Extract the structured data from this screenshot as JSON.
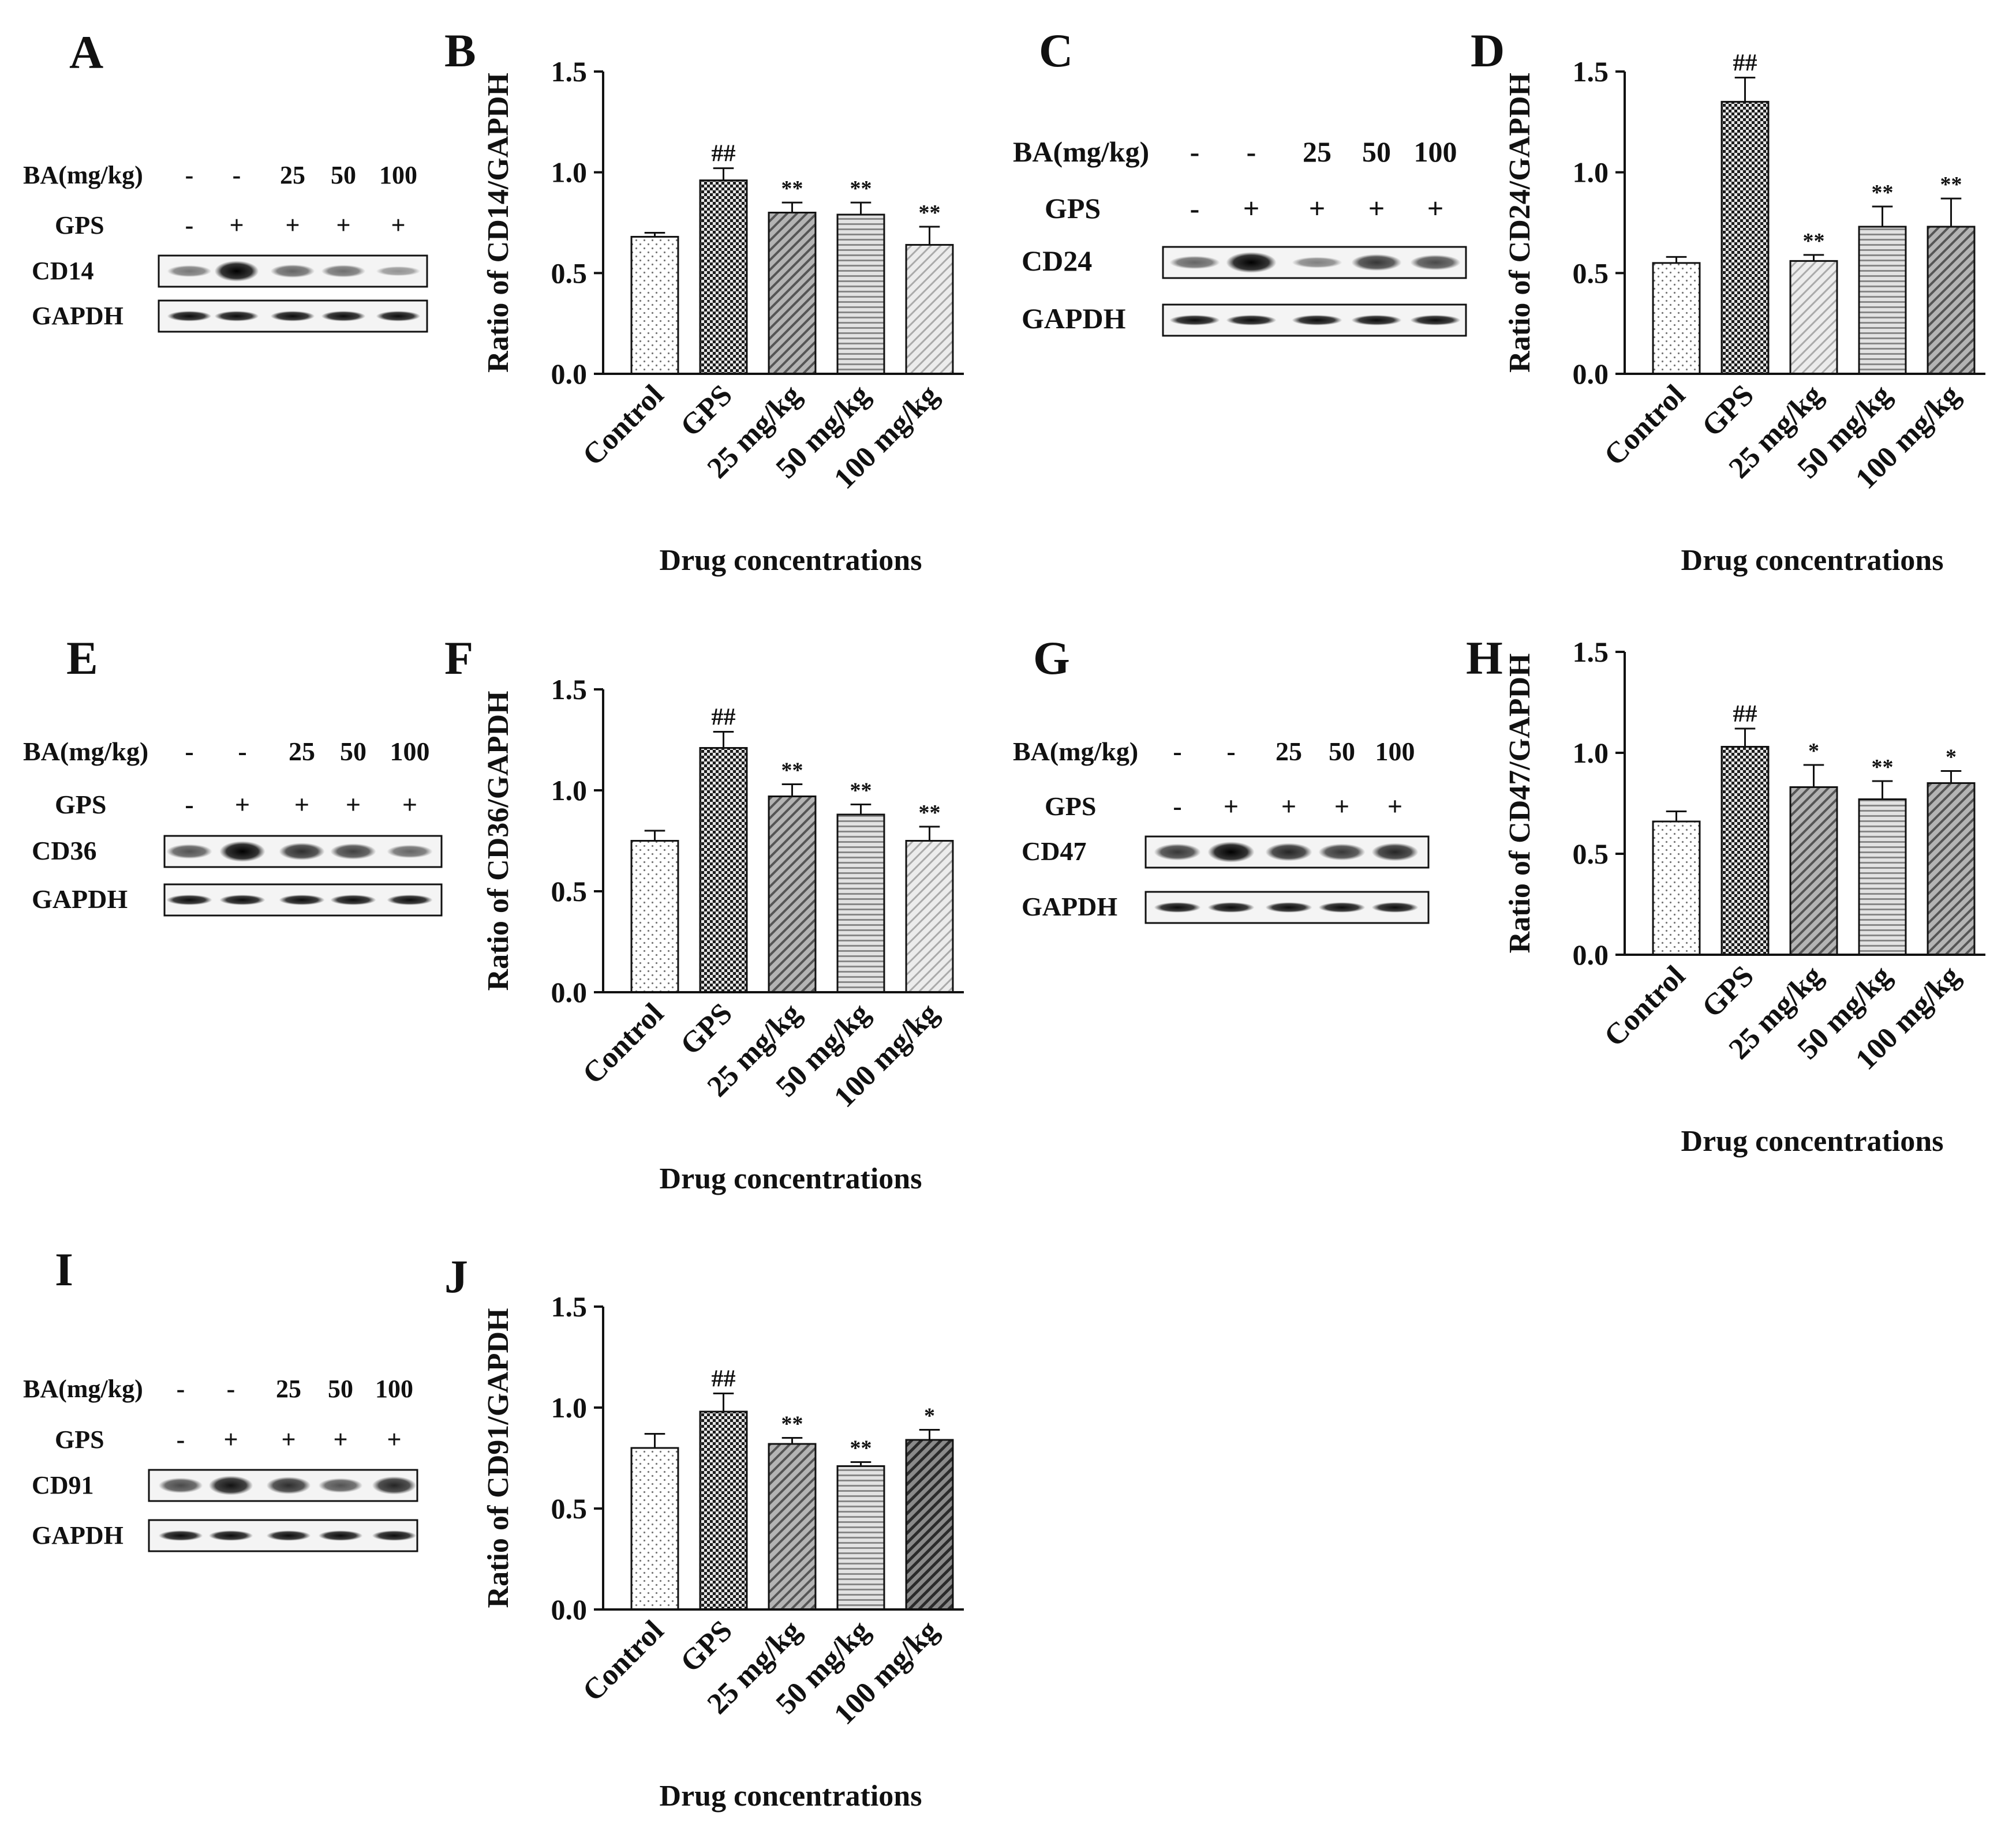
{
  "figure": {
    "panels": [
      {
        "id": "A",
        "kind": "blot",
        "ba_label": "BA(mg/kg)",
        "ba_values": [
          "-",
          "-",
          "25",
          "50",
          "100"
        ],
        "gps_label": "GPS",
        "gps_values": [
          "-",
          "+",
          "+",
          "+",
          "+"
        ],
        "protein": "CD14",
        "control_protein": "GAPDH",
        "band_intensity": [
          0.35,
          1.0,
          0.45,
          0.4,
          0.2
        ]
      },
      {
        "id": "C",
        "kind": "blot",
        "ba_label": "BA(mg/kg)",
        "ba_values": [
          "-",
          "-",
          "25",
          "50",
          "100"
        ],
        "gps_label": "GPS",
        "gps_values": [
          "-",
          "+",
          "+",
          "+",
          "+"
        ],
        "protein": "CD24",
        "control_protein": "GAPDH",
        "band_intensity": [
          0.45,
          1.0,
          0.3,
          0.7,
          0.6
        ]
      },
      {
        "id": "E",
        "kind": "blot",
        "ba_label": "BA(mg/kg)",
        "ba_values": [
          "-",
          "-",
          "25",
          "50",
          "100"
        ],
        "gps_label": "GPS",
        "gps_values": [
          "-",
          "+",
          "+",
          "+",
          "+"
        ],
        "protein": "CD36",
        "control_protein": "GAPDH",
        "band_intensity": [
          0.55,
          1.0,
          0.75,
          0.65,
          0.45
        ]
      },
      {
        "id": "G",
        "kind": "blot",
        "ba_label": "BA(mg/kg)",
        "ba_values": [
          "-",
          "-",
          "25",
          "50",
          "100"
        ],
        "gps_label": "GPS",
        "gps_values": [
          "-",
          "+",
          "+",
          "+",
          "+"
        ],
        "protein": "CD47",
        "control_protein": "GAPDH",
        "band_intensity": [
          0.7,
          1.0,
          0.8,
          0.7,
          0.8
        ]
      },
      {
        "id": "I",
        "kind": "blot",
        "ba_label": "BA(mg/kg)",
        "ba_values": [
          "-",
          "-",
          "25",
          "50",
          "100"
        ],
        "gps_label": "GPS",
        "gps_values": [
          "-",
          "+",
          "+",
          "+",
          "+"
        ],
        "protein": "CD91",
        "control_protein": "GAPDH",
        "band_intensity": [
          0.6,
          0.9,
          0.75,
          0.55,
          0.8
        ]
      }
    ]
  },
  "chart_data": [
    {
      "panel": "B",
      "type": "bar",
      "title": "",
      "xlabel": "Drug concentrations",
      "ylabel": "Ratio of CD14/GAPDH",
      "categories": [
        "Control",
        "GPS",
        "25 mg/kg",
        "50 mg/kg",
        "100 mg/kg"
      ],
      "values": [
        0.68,
        0.96,
        0.8,
        0.79,
        0.64
      ],
      "errors": [
        0.02,
        0.06,
        0.05,
        0.06,
        0.09
      ],
      "annotations": [
        "",
        "##",
        "**",
        "**",
        "**"
      ],
      "ylim": [
        0,
        1.5
      ],
      "yticks": [
        "0.0",
        "0.5",
        "1.0",
        "1.5"
      ],
      "patterns": [
        "dots",
        "checker",
        "diag",
        "hlines",
        "diagl"
      ]
    },
    {
      "panel": "D",
      "type": "bar",
      "title": "",
      "xlabel": "Drug concentrations",
      "ylabel": "Ratio of CD24/GAPDH",
      "categories": [
        "Control",
        "GPS",
        "25 mg/kg",
        "50 mg/kg",
        "100 mg/kg"
      ],
      "values": [
        0.55,
        1.35,
        0.56,
        0.73,
        0.73
      ],
      "errors": [
        0.03,
        0.12,
        0.03,
        0.1,
        0.14
      ],
      "annotations": [
        "",
        "##",
        "**",
        "**",
        "**"
      ],
      "ylim": [
        0,
        1.5
      ],
      "yticks": [
        "0.0",
        "0.5",
        "1.0",
        "1.5"
      ],
      "patterns": [
        "dots",
        "checker",
        "diagl",
        "hlines",
        "diag"
      ]
    },
    {
      "panel": "F",
      "type": "bar",
      "title": "",
      "xlabel": "Drug concentrations",
      "ylabel": "Ratio of CD36/GAPDH",
      "categories": [
        "Control",
        "GPS",
        "25 mg/kg",
        "50 mg/kg",
        "100 mg/kg"
      ],
      "values": [
        0.75,
        1.21,
        0.97,
        0.88,
        0.75
      ],
      "errors": [
        0.05,
        0.08,
        0.06,
        0.05,
        0.07
      ],
      "annotations": [
        "",
        "##",
        "**",
        "**",
        "**"
      ],
      "ylim": [
        0,
        1.5
      ],
      "yticks": [
        "0.0",
        "0.5",
        "1.0",
        "1.5"
      ],
      "patterns": [
        "dots",
        "checker",
        "diag",
        "hlines",
        "diagl"
      ]
    },
    {
      "panel": "H",
      "type": "bar",
      "title": "",
      "xlabel": "Drug concentrations",
      "ylabel": "Ratio of CD47/GAPDH",
      "categories": [
        "Control",
        "GPS",
        "25 mg/kg",
        "50 mg/kg",
        "100 mg/kg"
      ],
      "values": [
        0.66,
        1.03,
        0.83,
        0.77,
        0.85
      ],
      "errors": [
        0.05,
        0.09,
        0.11,
        0.09,
        0.06
      ],
      "annotations": [
        "",
        "##",
        "*",
        "**",
        "*"
      ],
      "ylim": [
        0,
        1.5
      ],
      "yticks": [
        "0.0",
        "0.5",
        "1.0",
        "1.5"
      ],
      "patterns": [
        "dots",
        "checker",
        "diag",
        "hlines",
        "diag"
      ]
    },
    {
      "panel": "J",
      "type": "bar",
      "title": "",
      "xlabel": "Drug concentrations",
      "ylabel": "Ratio of CD91/GAPDH",
      "categories": [
        "Control",
        "GPS",
        "25 mg/kg",
        "50 mg/kg",
        "100 mg/kg"
      ],
      "values": [
        0.8,
        0.98,
        0.82,
        0.71,
        0.84
      ],
      "errors": [
        0.07,
        0.09,
        0.03,
        0.02,
        0.05
      ],
      "annotations": [
        "",
        "##",
        "**",
        "**",
        "*"
      ],
      "ylim": [
        0,
        1.5
      ],
      "yticks": [
        "0.0",
        "0.5",
        "1.0",
        "1.5"
      ],
      "patterns": [
        "dots",
        "checker",
        "diag",
        "hlines",
        "diagdark"
      ]
    }
  ]
}
